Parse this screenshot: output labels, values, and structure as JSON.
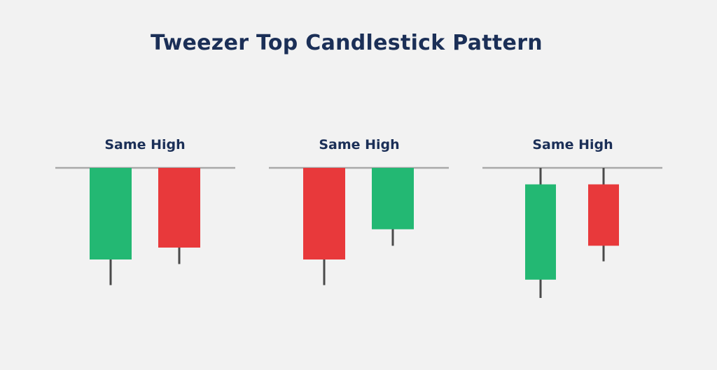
{
  "title": "Tweezer Top Candlestick Pattern",
  "colors": {
    "background": "#f2f2f2",
    "title": "#1b2f57",
    "bullish": "#23b873",
    "bearish": "#e8393b",
    "wick": "#4a4a4a",
    "level_line": "#a9a9a9"
  },
  "groups": [
    {
      "label": "Same High",
      "candles": [
        {
          "direction": "bullish",
          "open": 0.0,
          "close": 1.0,
          "high": 1.0,
          "low": -0.28
        },
        {
          "direction": "bearish",
          "open": 1.0,
          "close": 0.13,
          "high": 1.0,
          "low": -0.05
        }
      ]
    },
    {
      "label": "Same High",
      "candles": [
        {
          "direction": "bearish",
          "open": 1.0,
          "close": 0.0,
          "high": 1.0,
          "low": -0.28
        },
        {
          "direction": "bullish",
          "open": 0.33,
          "close": 1.0,
          "high": 1.0,
          "low": 0.15
        }
      ]
    },
    {
      "label": "Same High",
      "candles": [
        {
          "direction": "bullish",
          "open": -0.22,
          "close": 0.82,
          "high": 1.0,
          "low": -0.42
        },
        {
          "direction": "bearish",
          "open": 0.82,
          "close": 0.15,
          "high": 1.0,
          "low": -0.02
        }
      ]
    }
  ]
}
